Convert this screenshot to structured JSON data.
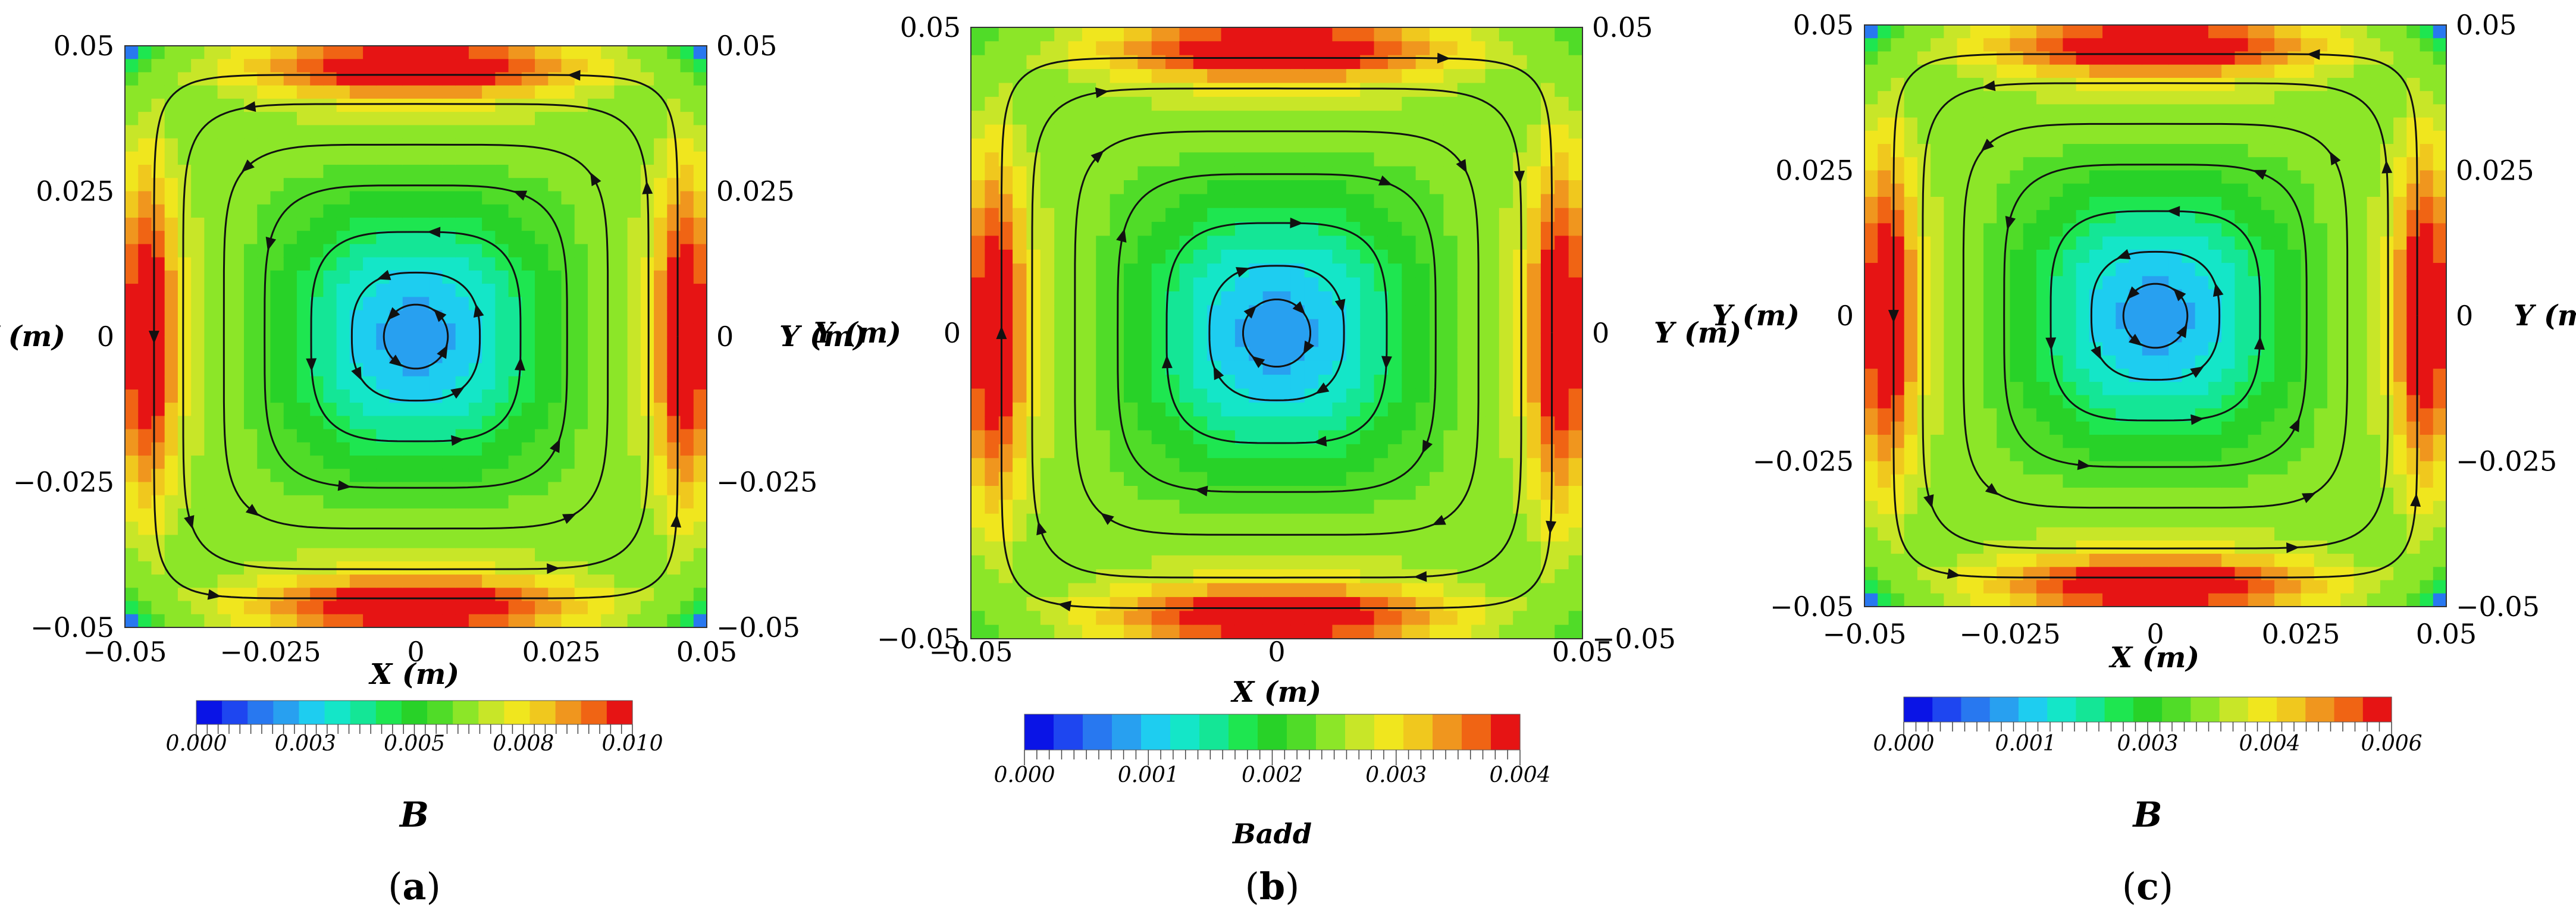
{
  "chart_data": [
    {
      "type": "heatmap",
      "panel_label_open": "(",
      "panel_label_letter": "a",
      "panel_label_close": ")",
      "field_label": "B",
      "xlabel": "X (m)",
      "ylabel_left": "Y (m)",
      "ylabel_right": "Y (m)",
      "xlim": [
        -0.05,
        0.05
      ],
      "ylim": [
        -0.05,
        0.05
      ],
      "x_ticks": [
        "−0.05",
        "−0.025",
        "0",
        "0.025",
        "0.05"
      ],
      "y_ticks": [
        "−0.05",
        "−0.025",
        "0",
        "0.025",
        "0.05"
      ],
      "colorbar": {
        "min": 0.0,
        "max": 0.01,
        "ticks": [
          "0.000",
          "0.003",
          "0.005",
          "0.008",
          "0.010"
        ]
      },
      "field_max": 0.01,
      "corner_dark": true,
      "streamlines": "closed counter-clockwise loops around the cavity center"
    },
    {
      "type": "heatmap",
      "panel_label_open": "(",
      "panel_label_letter": "b",
      "panel_label_close": ")",
      "field_label": "Badd",
      "xlabel": "X (m)",
      "ylabel_left": "Y (m)",
      "ylabel_right": "Y (m)",
      "xlim": [
        -0.05,
        0.05
      ],
      "ylim": [
        -0.05,
        0.05
      ],
      "x_ticks": [
        "−0.05",
        "0",
        "0.05"
      ],
      "y_ticks": [
        "−0.05",
        "0",
        "0.05"
      ],
      "colorbar": {
        "min": 0.0,
        "max": 0.004,
        "ticks": [
          "0.000",
          "0.001",
          "0.002",
          "0.003",
          "0.004"
        ]
      },
      "field_max": 0.004,
      "corner_dark": false,
      "streamlines": "closed clockwise loops around the cavity center"
    },
    {
      "type": "heatmap",
      "panel_label_open": "(",
      "panel_label_letter": "c",
      "panel_label_close": ")",
      "field_label": "B",
      "xlabel": "X (m)",
      "ylabel_left": "Y (m)",
      "ylabel_right": "Y (m)",
      "xlim": [
        -0.05,
        0.05
      ],
      "ylim": [
        -0.05,
        0.05
      ],
      "x_ticks": [
        "−0.05",
        "−0.025",
        "0",
        "0.025",
        "0.05"
      ],
      "y_ticks": [
        "−0.05",
        "−0.025",
        "0",
        "0.025",
        "0.05"
      ],
      "colorbar": {
        "min": 0.0,
        "max": 0.006,
        "ticks": [
          "0.000",
          "0.001",
          "0.003",
          "0.004",
          "0.006"
        ]
      },
      "field_max": 0.006,
      "corner_dark": true,
      "streamlines": "closed counter-clockwise loops around the cavity center"
    }
  ],
  "colormap": [
    "#0a14e6",
    "#1e46f0",
    "#2878f0",
    "#28a0f0",
    "#1ecdf0",
    "#14e6c8",
    "#14e696",
    "#1ee650",
    "#28d228",
    "#50dc28",
    "#8ce628",
    "#c8e628",
    "#f0e61e",
    "#f0c81e",
    "#f0961e",
    "#f06414",
    "#e61414"
  ]
}
